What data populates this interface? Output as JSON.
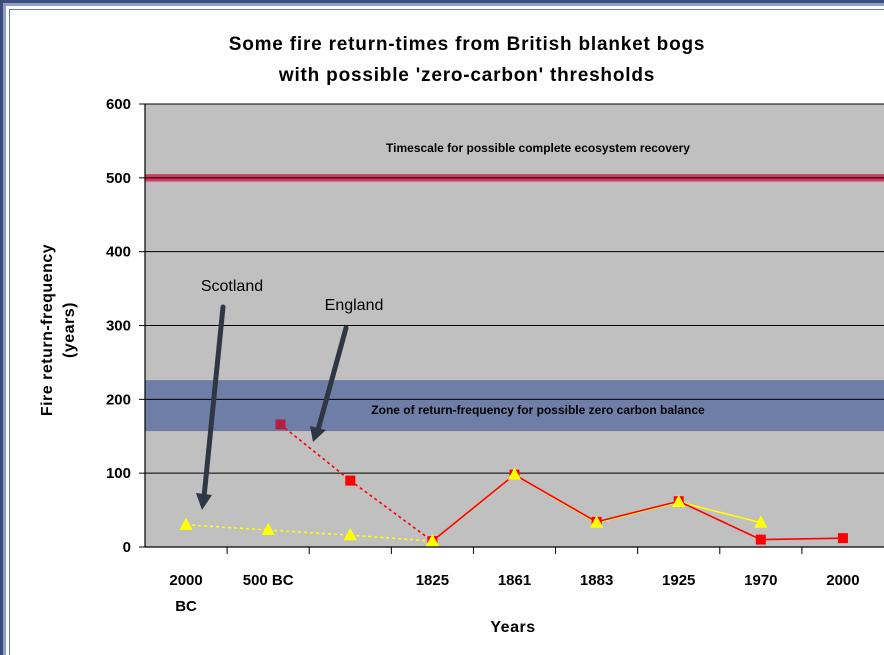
{
  "chart_data": {
    "type": "line",
    "title": "Some fire return-times from British blanket bogs",
    "subtitle": "with possible 'zero-carbon' thresholds",
    "ylabel_line1": "Fire return-frequency",
    "ylabel_line2": "(years)",
    "xlabel": "Years",
    "ylim": [
      0,
      600
    ],
    "yticks": [
      0,
      100,
      200,
      300,
      400,
      500,
      600
    ],
    "categories": [
      {
        "line1": "2000",
        "line2": "BC"
      },
      {
        "line1": "500 BC",
        "line2": ""
      },
      {
        "line1": "",
        "line2": ""
      },
      {
        "line1": "1825",
        "line2": ""
      },
      {
        "line1": "1861",
        "line2": ""
      },
      {
        "line1": "1883",
        "line2": ""
      },
      {
        "line1": "1925",
        "line2": ""
      },
      {
        "line1": "1970",
        "line2": ""
      },
      {
        "line1": "2000",
        "line2": ""
      }
    ],
    "grid": true,
    "plot_background": "#c0c0c0",
    "bands": [
      {
        "from": 495,
        "to": 505,
        "color": "#d23a60",
        "label": "Timescale for possible complete ecosystem recovery"
      },
      {
        "from": 157,
        "to": 226,
        "color": "#6f7ea6",
        "label": "Zone of return-frequency for possible zero carbon balance"
      }
    ],
    "series": [
      {
        "color": "#ffff00",
        "marker": "triangle",
        "points": [
          {
            "x": 0.5,
            "y": 30,
            "dashed": false
          },
          {
            "x": 1.5,
            "y": 23,
            "dashed": true
          },
          {
            "x": 2.5,
            "y": 16,
            "dashed": true
          },
          {
            "x": 3.5,
            "y": 8,
            "dashed": true
          },
          {
            "x": 4.5,
            "y": 98,
            "dashed": false
          },
          {
            "x": 5.5,
            "y": 33,
            "dashed": false
          },
          {
            "x": 6.5,
            "y": 61,
            "dashed": false
          },
          {
            "x": 7.5,
            "y": 33,
            "dashed": false
          }
        ]
      },
      {
        "color": "#ff0000",
        "marker": "square",
        "points": [
          {
            "x": 1.65,
            "y": 166,
            "dashed": false
          },
          {
            "x": 2.5,
            "y": 90,
            "dashed": true
          },
          {
            "x": 3.5,
            "y": 8,
            "dashed": true
          },
          {
            "x": 4.5,
            "y": 98,
            "dashed": false
          },
          {
            "x": 5.5,
            "y": 34,
            "dashed": false
          },
          {
            "x": 6.5,
            "y": 62,
            "dashed": false
          },
          {
            "x": 7.5,
            "y": 10,
            "dashed": false
          },
          {
            "x": 8.5,
            "y": 12,
            "dashed": false
          }
        ]
      }
    ],
    "annotations": {
      "scotland": "Scotland",
      "england": "England"
    },
    "colors": {
      "arrow": "#2f3644",
      "gridline": "#000000"
    }
  }
}
